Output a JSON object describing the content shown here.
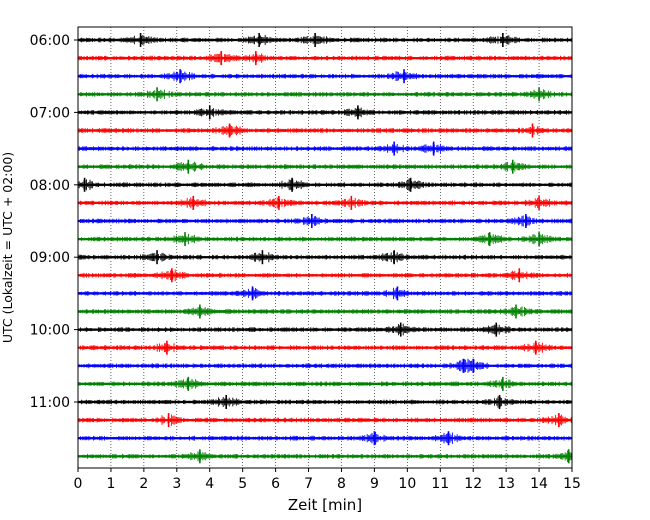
{
  "chart_data": {
    "type": "line",
    "title": "",
    "xlabel": "Zeit  [min]",
    "ylabel": "UTC (Lokalzeit = UTC + 02:00)",
    "xlim": [
      0,
      15
    ],
    "x_ticks": [
      0,
      1,
      2,
      3,
      4,
      5,
      6,
      7,
      8,
      9,
      10,
      11,
      12,
      13,
      14,
      15
    ],
    "x_tick_labels": [
      "0",
      "1",
      "2",
      "3",
      "4",
      "5",
      "6",
      "7",
      "8",
      "9",
      "10",
      "11",
      "12",
      "13",
      "14",
      "15"
    ],
    "y_tick_labels": [
      "06:00",
      "07:00",
      "08:00",
      "09:00",
      "10:00",
      "11:00"
    ],
    "grid": "vertical dotted",
    "trace_minutes": 15,
    "trace_colors": [
      "#000000",
      "#ff0000",
      "#0000ff",
      "#008000"
    ],
    "traces": [
      {
        "start": "06:00",
        "color": "#000000",
        "spikes": [
          1.9,
          5.5,
          7.2,
          12.9
        ]
      },
      {
        "start": "06:15",
        "color": "#ff0000",
        "spikes": [
          4.35,
          5.4
        ]
      },
      {
        "start": "06:30",
        "color": "#0000ff",
        "spikes": [
          3.1,
          9.9
        ]
      },
      {
        "start": "06:45",
        "color": "#008000",
        "spikes": [
          2.4,
          14.0
        ]
      },
      {
        "start": "07:00",
        "color": "#000000",
        "spikes": [
          4.0,
          8.5
        ]
      },
      {
        "start": "07:15",
        "color": "#ff0000",
        "spikes": [
          4.6,
          13.8
        ]
      },
      {
        "start": "07:30",
        "color": "#0000ff",
        "spikes": [
          9.6,
          10.8
        ]
      },
      {
        "start": "07:45",
        "color": "#008000",
        "spikes": [
          3.35,
          13.2
        ]
      },
      {
        "start": "08:00",
        "color": "#000000",
        "spikes": [
          0.2,
          6.5,
          10.1
        ]
      },
      {
        "start": "08:15",
        "color": "#ff0000",
        "spikes": [
          3.5,
          6.1,
          8.3,
          14.0
        ]
      },
      {
        "start": "08:30",
        "color": "#0000ff",
        "spikes": [
          7.1,
          13.6
        ]
      },
      {
        "start": "08:45",
        "color": "#008000",
        "spikes": [
          3.25,
          12.5,
          14.0
        ]
      },
      {
        "start": "09:00",
        "color": "#000000",
        "spikes": [
          2.4,
          5.6,
          9.6
        ]
      },
      {
        "start": "09:15",
        "color": "#ff0000",
        "spikes": [
          2.85,
          13.4
        ]
      },
      {
        "start": "09:30",
        "color": "#0000ff",
        "spikes": [
          5.3,
          9.7
        ]
      },
      {
        "start": "09:45",
        "color": "#008000",
        "spikes": [
          3.7,
          13.3
        ]
      },
      {
        "start": "10:00",
        "color": "#000000",
        "spikes": [
          9.8,
          12.7
        ]
      },
      {
        "start": "10:15",
        "color": "#ff0000",
        "spikes": [
          2.7,
          13.9
        ]
      },
      {
        "start": "10:30",
        "color": "#0000ff",
        "spikes": [
          11.7,
          12.0
        ]
      },
      {
        "start": "10:45",
        "color": "#008000",
        "spikes": [
          3.35,
          12.9
        ]
      },
      {
        "start": "11:00",
        "color": "#000000",
        "spikes": [
          4.5,
          12.8
        ]
      },
      {
        "start": "11:15",
        "color": "#ff0000",
        "spikes": [
          2.75,
          14.6
        ]
      },
      {
        "start": "11:30",
        "color": "#0000ff",
        "spikes": [
          9.0,
          11.25
        ]
      },
      {
        "start": "11:45",
        "color": "#008000",
        "spikes": [
          3.7,
          14.9
        ]
      }
    ]
  }
}
